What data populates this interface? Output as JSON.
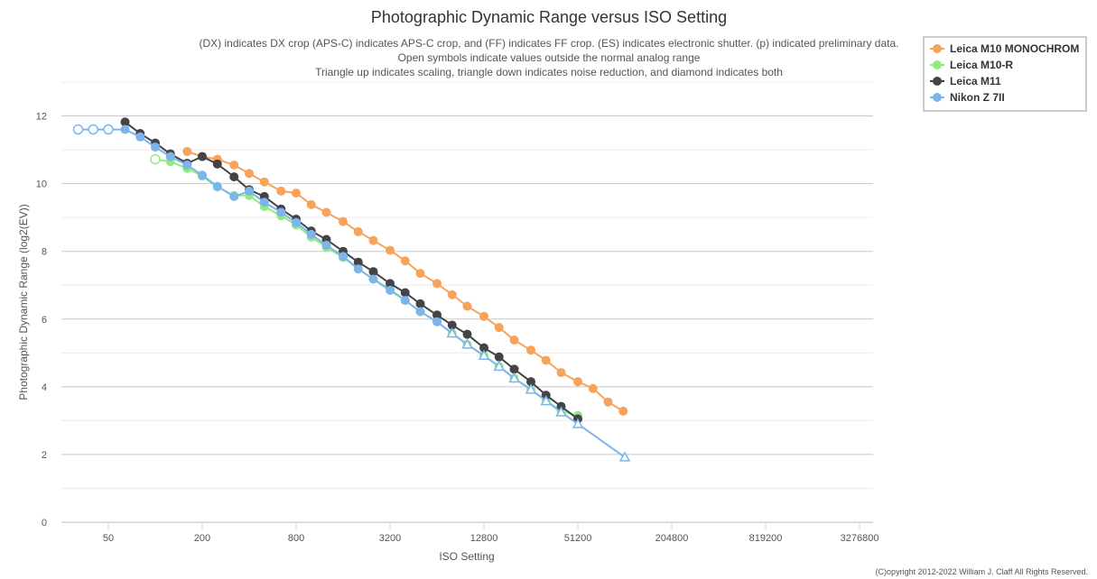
{
  "chart_data": {
    "type": "line",
    "title": "Photographic Dynamic Range versus ISO Setting",
    "subtitle_lines": [
      "(DX) indicates DX crop (APS-C) indicates APS-C crop, and (FF) indicates FF crop. (ES) indicates electronic shutter. (p) indicated preliminary data.",
      "Open symbols indicate values outside the normal analog range",
      "Triangle up indicates scaling, triangle down indicates noise reduction, and diamond indicates both"
    ],
    "xlabel": "ISO Setting",
    "ylabel": "Photographic Dynamic Range (log2(EV))",
    "x_scale": "log2",
    "x_ticks": [
      50,
      200,
      800,
      3200,
      12800,
      51200,
      204800,
      819200,
      3276800
    ],
    "x_range": [
      25,
      4000000
    ],
    "y_ticks": [
      0,
      2,
      4,
      6,
      8,
      10,
      12
    ],
    "ylim": [
      0,
      13
    ],
    "grid": true,
    "legend_position": "top-right",
    "credit": "(C)opyright 2012-2022 William J. Claff All Rights Reserved.",
    "series": [
      {
        "name": "Leica M10 MONOCHROM",
        "color": "#f7a35c",
        "points": [
          {
            "x": 160,
            "y": 10.95
          },
          {
            "x": 200,
            "y": 10.8
          },
          {
            "x": 250,
            "y": 10.72
          },
          {
            "x": 320,
            "y": 10.55
          },
          {
            "x": 400,
            "y": 10.3
          },
          {
            "x": 500,
            "y": 10.05
          },
          {
            "x": 640,
            "y": 9.78
          },
          {
            "x": 800,
            "y": 9.72
          },
          {
            "x": 1000,
            "y": 9.38
          },
          {
            "x": 1250,
            "y": 9.15
          },
          {
            "x": 1600,
            "y": 8.88
          },
          {
            "x": 2000,
            "y": 8.58
          },
          {
            "x": 2500,
            "y": 8.32
          },
          {
            "x": 3200,
            "y": 8.03
          },
          {
            "x": 4000,
            "y": 7.72
          },
          {
            "x": 5000,
            "y": 7.35
          },
          {
            "x": 6400,
            "y": 7.05
          },
          {
            "x": 8000,
            "y": 6.72
          },
          {
            "x": 10000,
            "y": 6.38
          },
          {
            "x": 12800,
            "y": 6.08
          },
          {
            "x": 16000,
            "y": 5.75
          },
          {
            "x": 20000,
            "y": 5.38
          },
          {
            "x": 25600,
            "y": 5.08
          },
          {
            "x": 32000,
            "y": 4.78
          },
          {
            "x": 40000,
            "y": 4.42
          },
          {
            "x": 51200,
            "y": 4.15
          },
          {
            "x": 64000,
            "y": 3.95
          },
          {
            "x": 80000,
            "y": 3.55
          },
          {
            "x": 100000,
            "y": 3.28
          }
        ]
      },
      {
        "name": "Leica M10-R",
        "color": "#90ed7d",
        "points": [
          {
            "x": 100,
            "y": 10.72,
            "open": true
          },
          {
            "x": 125,
            "y": 10.65
          },
          {
            "x": 160,
            "y": 10.45
          },
          {
            "x": 200,
            "y": 10.22
          },
          {
            "x": 250,
            "y": 9.9
          },
          {
            "x": 320,
            "y": 9.65
          },
          {
            "x": 400,
            "y": 9.65
          },
          {
            "x": 500,
            "y": 9.32
          },
          {
            "x": 640,
            "y": 9.05
          },
          {
            "x": 800,
            "y": 8.78
          },
          {
            "x": 1000,
            "y": 8.42
          },
          {
            "x": 1250,
            "y": 8.12
          },
          {
            "x": 1600,
            "y": 7.82
          },
          {
            "x": 2000,
            "y": 7.48
          },
          {
            "x": 2500,
            "y": 7.18
          },
          {
            "x": 3200,
            "y": 6.88
          },
          {
            "x": 4000,
            "y": 6.55
          },
          {
            "x": 5000,
            "y": 6.22
          },
          {
            "x": 6400,
            "y": 5.92
          },
          {
            "x": 8000,
            "y": 5.58
          },
          {
            "x": 10000,
            "y": 5.25
          },
          {
            "x": 12800,
            "y": 4.92
          },
          {
            "x": 16000,
            "y": 4.6
          },
          {
            "x": 20000,
            "y": 4.25
          },
          {
            "x": 25600,
            "y": 3.92
          },
          {
            "x": 32000,
            "y": 3.6
          },
          {
            "x": 40000,
            "y": 3.28
          },
          {
            "x": 51200,
            "y": 3.15
          }
        ]
      },
      {
        "name": "Leica M11",
        "color": "#434348",
        "points": [
          {
            "x": 64,
            "y": 11.82
          },
          {
            "x": 80,
            "y": 11.48
          },
          {
            "x": 100,
            "y": 11.2
          },
          {
            "x": 125,
            "y": 10.88
          },
          {
            "x": 160,
            "y": 10.6
          },
          {
            "x": 200,
            "y": 10.8
          },
          {
            "x": 250,
            "y": 10.58
          },
          {
            "x": 320,
            "y": 10.2
          },
          {
            "x": 400,
            "y": 9.82
          },
          {
            "x": 500,
            "y": 9.62
          },
          {
            "x": 640,
            "y": 9.25
          },
          {
            "x": 800,
            "y": 8.95
          },
          {
            "x": 1000,
            "y": 8.6
          },
          {
            "x": 1250,
            "y": 8.35
          },
          {
            "x": 1600,
            "y": 8.0
          },
          {
            "x": 2000,
            "y": 7.68
          },
          {
            "x": 2500,
            "y": 7.4
          },
          {
            "x": 3200,
            "y": 7.05
          },
          {
            "x": 4000,
            "y": 6.78
          },
          {
            "x": 5000,
            "y": 6.45
          },
          {
            "x": 6400,
            "y": 6.12
          },
          {
            "x": 8000,
            "y": 5.82
          },
          {
            "x": 10000,
            "y": 5.55
          },
          {
            "x": 12800,
            "y": 5.15
          },
          {
            "x": 16000,
            "y": 4.88
          },
          {
            "x": 20000,
            "y": 4.52
          },
          {
            "x": 25600,
            "y": 4.15
          },
          {
            "x": 32000,
            "y": 3.75
          },
          {
            "x": 40000,
            "y": 3.42
          },
          {
            "x": 51200,
            "y": 3.05
          }
        ]
      },
      {
        "name": "Nikon Z 7II",
        "color": "#7cb5ec",
        "points": [
          {
            "x": 32,
            "y": 11.6,
            "open": true
          },
          {
            "x": 40,
            "y": 11.6,
            "open": true
          },
          {
            "x": 50,
            "y": 11.6,
            "open": true
          },
          {
            "x": 64,
            "y": 11.6
          },
          {
            "x": 80,
            "y": 11.38
          },
          {
            "x": 100,
            "y": 11.08
          },
          {
            "x": 125,
            "y": 10.8
          },
          {
            "x": 160,
            "y": 10.55
          },
          {
            "x": 200,
            "y": 10.25
          },
          {
            "x": 250,
            "y": 9.92
          },
          {
            "x": 320,
            "y": 9.62
          },
          {
            "x": 400,
            "y": 9.78
          },
          {
            "x": 500,
            "y": 9.45
          },
          {
            "x": 640,
            "y": 9.15
          },
          {
            "x": 800,
            "y": 8.85
          },
          {
            "x": 1000,
            "y": 8.5
          },
          {
            "x": 1250,
            "y": 8.18
          },
          {
            "x": 1600,
            "y": 7.85
          },
          {
            "x": 2000,
            "y": 7.48
          },
          {
            "x": 2500,
            "y": 7.18
          },
          {
            "x": 3200,
            "y": 6.85
          },
          {
            "x": 4000,
            "y": 6.55
          },
          {
            "x": 5000,
            "y": 6.22
          },
          {
            "x": 6400,
            "y": 5.92
          },
          {
            "x": 8000,
            "y": 5.58,
            "marker": "triangle-up",
            "open": true
          },
          {
            "x": 10000,
            "y": 5.25,
            "marker": "triangle-up",
            "open": true
          },
          {
            "x": 12800,
            "y": 4.92,
            "marker": "triangle-up",
            "open": true
          },
          {
            "x": 16000,
            "y": 4.6,
            "marker": "triangle-up",
            "open": true
          },
          {
            "x": 20000,
            "y": 4.25,
            "marker": "triangle-up",
            "open": true
          },
          {
            "x": 25600,
            "y": 3.92,
            "marker": "triangle-up",
            "open": true
          },
          {
            "x": 32000,
            "y": 3.58,
            "marker": "triangle-up",
            "open": true
          },
          {
            "x": 40000,
            "y": 3.25,
            "marker": "triangle-up",
            "open": true
          },
          {
            "x": 51200,
            "y": 2.9,
            "marker": "triangle-up",
            "open": true
          },
          {
            "x": 102400,
            "y": 1.92,
            "marker": "triangle-up",
            "open": true
          }
        ]
      }
    ]
  }
}
